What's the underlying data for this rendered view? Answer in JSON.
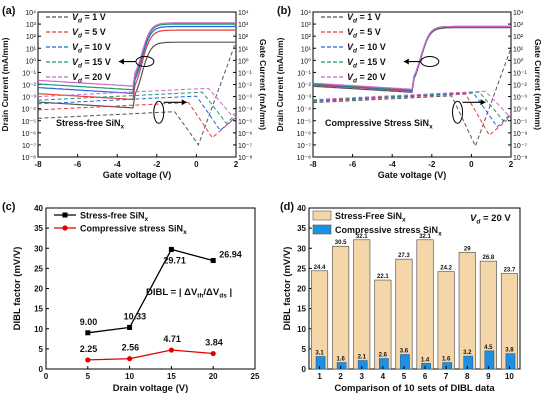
{
  "panels": {
    "a": "(a)",
    "b": "(b)",
    "c": "(c)",
    "d": "(d)"
  },
  "colors": {
    "vd1": "#555555",
    "vd5": "#e83b3b",
    "vd10": "#2266dd",
    "vd15": "#1a9a6a",
    "vd20": "#cc66cc",
    "red": "#e00000",
    "blue": "#1a4fd8",
    "bar_tan": "#f5d6a8",
    "bar_blue": "#1e90e0"
  },
  "chart_data": [
    {
      "panel": "a",
      "type": "line",
      "log_y": true,
      "xlabel": "Gate voltage (V)",
      "ylabel": "Drain Current (mA/mm)",
      "ylabel_right": "Gate Current (mA/mm)",
      "annotation": "Stress-free SiN",
      "annotation_sub": "x",
      "xlim": [
        -8,
        2
      ],
      "xticks": [
        "-8",
        "-6",
        "-4",
        "-2",
        "0",
        "2"
      ],
      "ylim_exp": [
        -8,
        4
      ],
      "yticks": [
        "10⁴",
        "10³",
        "10²",
        "10¹",
        "10⁰",
        "10⁻¹",
        "10⁻²",
        "10⁻³",
        "10⁻⁴",
        "10⁻⁵",
        "10⁻⁶",
        "10⁻⁷",
        "10⁻⁸"
      ],
      "legend": [
        {
          "pre": "V",
          "sub": "d",
          "post": " = 1 V"
        },
        {
          "pre": "V",
          "sub": "d",
          "post": " = 5 V"
        },
        {
          "pre": "V",
          "sub": "d",
          "post": " = 10 V"
        },
        {
          "pre": "V",
          "sub": "d",
          "post": " = 15 V"
        },
        {
          "pre": "V",
          "sub": "d",
          "post": " = 20 V"
        }
      ],
      "vth": -3.1,
      "on_levels": [
        1.5,
        2.5,
        2.8,
        3.0,
        3.1
      ],
      "off_levels": [
        -4.2,
        -3.5,
        -3.0,
        -2.7,
        -2.4
      ],
      "gate_dip": [
        -7.0,
        -6.4,
        -5.8,
        -5.2,
        -4.6
      ],
      "gate_dip_v": [
        0.1,
        0.8,
        1.2,
        1.5,
        1.8
      ]
    },
    {
      "panel": "b",
      "type": "line",
      "log_y": true,
      "xlabel": "Gate voltage (V)",
      "ylabel": "Drain Current (mA/mm)",
      "ylabel_right": "Gate Current (mA/mm)",
      "annotation": "Compressive Stress SiN",
      "annotation_sub": "x",
      "xlim": [
        -8,
        2
      ],
      "xticks": [
        "-8",
        "-6",
        "-4",
        "-2",
        "0",
        "2"
      ],
      "ylim_exp": [
        -8,
        4
      ],
      "yticks": [
        "10⁴",
        "10³",
        "10²",
        "10¹",
        "10⁰",
        "10⁻¹",
        "10⁻²",
        "10⁻³",
        "10⁻⁴",
        "10⁻⁵",
        "10⁻⁶",
        "10⁻⁷",
        "10⁻⁸"
      ],
      "legend": [
        {
          "pre": "V",
          "sub": "d",
          "post": " = 1 V"
        },
        {
          "pre": "V",
          "sub": "d",
          "post": " = 5 V"
        },
        {
          "pre": "V",
          "sub": "d",
          "post": " = 10 V"
        },
        {
          "pre": "V",
          "sub": "d",
          "post": " = 15 V"
        },
        {
          "pre": "V",
          "sub": "d",
          "post": " = 20 V"
        }
      ],
      "vth": -2.9,
      "on_levels": [
        2.7,
        2.8,
        2.8,
        2.8,
        2.8
      ],
      "off_levels": [
        -2.9,
        -2.8,
        -2.75,
        -2.7,
        -2.65
      ],
      "gate_dip": [
        -7.1,
        -6.2,
        -5.5,
        -5.0,
        -4.6
      ],
      "gate_dip_v": [
        0.2,
        0.9,
        1.3,
        1.6,
        1.9
      ]
    },
    {
      "panel": "c",
      "type": "line",
      "xlabel": "Drain voltage (V)",
      "ylabel": "DIBL factor (mV/V)",
      "xlim": [
        0,
        25
      ],
      "ylim": [
        0,
        40
      ],
      "xticks": [
        "0",
        "5",
        "10",
        "15",
        "20",
        "25"
      ],
      "yticks": [
        "0",
        "5",
        "10",
        "15",
        "20",
        "25",
        "30",
        "35",
        "40"
      ],
      "formula": "DIBL = | ΔV",
      "formula_parts": {
        "th": "th",
        "mid": "/ΔV",
        "ds": "ds",
        "end": " |"
      },
      "series": [
        {
          "name": "Stress-free SiN",
          "name_sub": "x",
          "x": [
            5,
            10,
            15,
            20
          ],
          "values": [
            9.0,
            10.33,
            29.71,
            26.94
          ],
          "labels": [
            "9.00",
            "10.33",
            "29.71",
            "26.94"
          ]
        },
        {
          "name": "Compressive stress SiN",
          "name_sub": "x",
          "x": [
            5,
            10,
            15,
            20
          ],
          "values": [
            2.25,
            2.56,
            4.71,
            3.84
          ],
          "labels": [
            "2.25",
            "2.56",
            "4.71",
            "3.84"
          ]
        }
      ]
    },
    {
      "panel": "d",
      "type": "bar",
      "xlabel": "Comparison of 10 sets of DIBL data",
      "ylabel": "DIBL factor (mV/V)",
      "ylim": [
        0,
        40
      ],
      "yticks": [
        "0",
        "5",
        "10",
        "15",
        "20",
        "25",
        "30",
        "35",
        "40"
      ],
      "note_pre": "V",
      "note_sub": "d",
      "note_post": " = 20 V",
      "categories": [
        "1",
        "2",
        "3",
        "4",
        "5",
        "6",
        "7",
        "8",
        "9",
        "10"
      ],
      "series": [
        {
          "name": "Stress-Free SiN",
          "name_sub": "x",
          "values": [
            24.4,
            30.5,
            32.1,
            22.1,
            27.3,
            32.1,
            24.2,
            29,
            26.8,
            23.7
          ],
          "labels": [
            "24.4",
            "30.5",
            "32.1",
            "22.1",
            "27.3",
            "32.1",
            "24.2",
            "29",
            "26.8",
            "23.7"
          ]
        },
        {
          "name": "Compressive stress SiN",
          "name_sub": "x",
          "values": [
            3.1,
            1.6,
            2.1,
            2.6,
            3.6,
            1.4,
            1.6,
            3.2,
            4.5,
            3.8
          ],
          "labels": [
            "3.1",
            "1.6",
            "2.1",
            "2.6",
            "3.6",
            "1.4",
            "1.6",
            "3.2",
            "4.5",
            "3.8"
          ]
        }
      ]
    }
  ]
}
